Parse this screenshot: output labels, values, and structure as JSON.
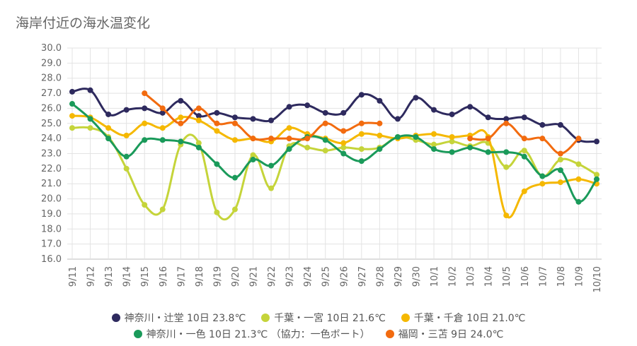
{
  "chart_data": {
    "type": "line",
    "title": "海岸付近の海水温変化",
    "ylim": [
      16.0,
      30.0
    ],
    "y_ticks": [
      "30.0",
      "29.0",
      "28.0",
      "27.0",
      "26.0",
      "25.0",
      "24.0",
      "23.0",
      "22.0",
      "21.0",
      "20.0",
      "19.0",
      "18.0",
      "17.0",
      "16.0"
    ],
    "grid": true,
    "legend_placement": "bottom",
    "categories": [
      "9/11",
      "9/12",
      "9/13",
      "9/14",
      "9/15",
      "9/16",
      "9/17",
      "9/18",
      "9/19",
      "9/20",
      "9/21",
      "9/22",
      "9/23",
      "9/24",
      "9/25",
      "9/26",
      "9/27",
      "9/28",
      "9/29",
      "9/30",
      "10/1",
      "10/2",
      "10/3",
      "10/4",
      "10/5",
      "10/6",
      "10/7",
      "10/8",
      "10/9",
      "10/10"
    ],
    "series": [
      {
        "name": "神奈川・辻堂 10日 23.8℃",
        "color": "#2e2a5e",
        "values": [
          27.1,
          27.2,
          25.6,
          25.9,
          26.0,
          25.7,
          26.5,
          25.5,
          25.7,
          25.4,
          25.3,
          25.2,
          26.1,
          26.2,
          25.7,
          25.7,
          26.9,
          26.5,
          25.3,
          26.7,
          25.9,
          25.6,
          26.1,
          25.4,
          25.3,
          25.4,
          24.9,
          24.9,
          23.9,
          23.8
        ]
      },
      {
        "name": "千葉・一宮 10日 21.6℃",
        "color": "#c5d43a",
        "values": [
          24.7,
          24.7,
          24.1,
          22.0,
          19.6,
          19.3,
          23.6,
          23.7,
          19.1,
          19.3,
          22.9,
          20.7,
          23.5,
          23.4,
          23.2,
          23.4,
          23.3,
          23.4,
          24.1,
          23.9,
          23.6,
          23.8,
          23.5,
          23.7,
          22.1,
          23.2,
          21.5,
          22.6,
          22.3,
          21.6
        ]
      },
      {
        "name": "千葉・千倉 10日 21.0℃",
        "color": "#f5b800",
        "values": [
          25.5,
          25.4,
          24.7,
          24.2,
          25.0,
          24.7,
          25.4,
          25.2,
          24.5,
          23.9,
          24.0,
          23.8,
          24.7,
          24.3,
          24.0,
          23.7,
          24.3,
          24.2,
          24.0,
          24.2,
          24.3,
          24.1,
          24.2,
          24.1,
          18.9,
          20.5,
          21.0,
          21.1,
          21.3,
          21.0
        ]
      },
      {
        "name": "神奈川・一色 10日 21.3℃ （協力：一色ボート）",
        "color": "#1a9a5a",
        "values": [
          26.3,
          25.3,
          24.0,
          22.8,
          23.9,
          23.9,
          23.8,
          23.4,
          22.3,
          21.4,
          22.6,
          22.2,
          23.3,
          24.1,
          23.9,
          23.0,
          22.5,
          23.3,
          24.1,
          24.1,
          23.3,
          23.1,
          23.4,
          23.1,
          23.1,
          22.8,
          21.5,
          21.9,
          19.8,
          21.3
        ]
      },
      {
        "name": "福岡・三苫 9日 24.0℃",
        "color": "#f26b0f",
        "values": [
          null,
          null,
          null,
          null,
          27.0,
          26.0,
          25.0,
          26.0,
          25.0,
          25.0,
          24.0,
          24.0,
          24.0,
          24.0,
          25.0,
          24.5,
          25.0,
          25.0,
          null,
          null,
          null,
          null,
          24.0,
          24.0,
          25.0,
          24.0,
          24.0,
          23.0,
          24.0,
          null
        ]
      }
    ]
  }
}
